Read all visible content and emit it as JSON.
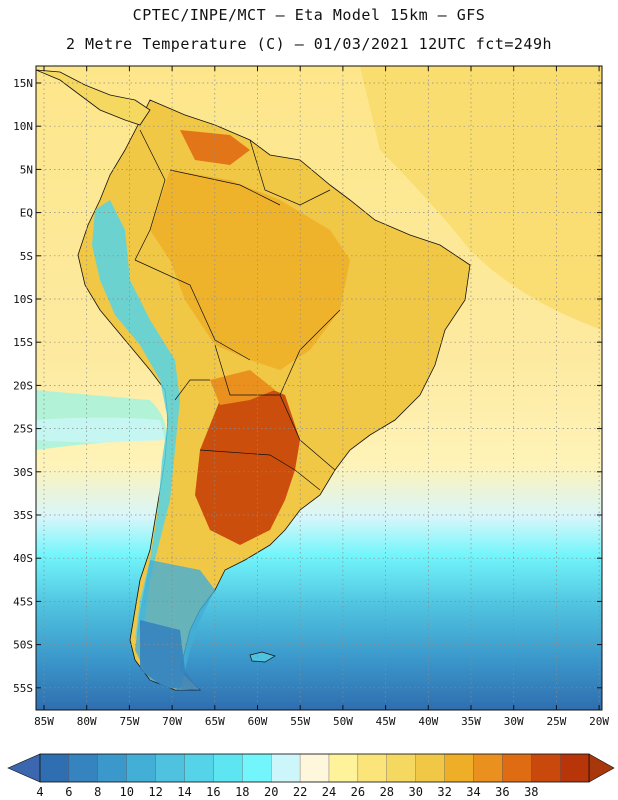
{
  "header": {
    "title_line1": "CPTEC/INPE/MCT –  Eta Model 15km – GFS",
    "title_line2": "2 Metre Temperature (C) – 01/03/2021 12UTC fct=249h"
  },
  "axes": {
    "lat_labels": [
      "15N",
      "10N",
      "5N",
      "EQ",
      "5S",
      "10S",
      "15S",
      "20S",
      "25S",
      "30S",
      "35S",
      "40S",
      "45S",
      "50S",
      "55S"
    ],
    "lon_labels": [
      "85W",
      "80W",
      "75W",
      "70W",
      "65W",
      "60W",
      "55W",
      "50W",
      "45W",
      "40W",
      "35W",
      "30W",
      "25W",
      "20W"
    ]
  },
  "colorbar": {
    "levels": [
      "4",
      "6",
      "8",
      "10",
      "12",
      "14",
      "16",
      "18",
      "20",
      "22",
      "24",
      "26",
      "28",
      "30",
      "32",
      "34",
      "36",
      "38"
    ],
    "colors": [
      "#2f6eb0",
      "#3583bf",
      "#3b98cb",
      "#43aed6",
      "#4fc2df",
      "#55d3e8",
      "#5de6f2",
      "#72f5fb",
      "#cdf6fb",
      "#fff7dc",
      "#fef39a",
      "#fbe57a",
      "#f5d85f",
      "#f1c746",
      "#eeae27",
      "#e9901f",
      "#df6c13",
      "#c9480b",
      "#b83409"
    ],
    "under_color": "#3a67ad",
    "over_color": "#a8380c"
  },
  "map": {
    "ocean_tropical": "#fde88a",
    "ocean_subtropical": "#fef0a6",
    "land_tropical": "#f1c746",
    "hot_core": "#c9480b",
    "andes_cold": "#55d3e8",
    "south_ocean": "#4fc2df",
    "deep_south": "#2f6eb0"
  }
}
